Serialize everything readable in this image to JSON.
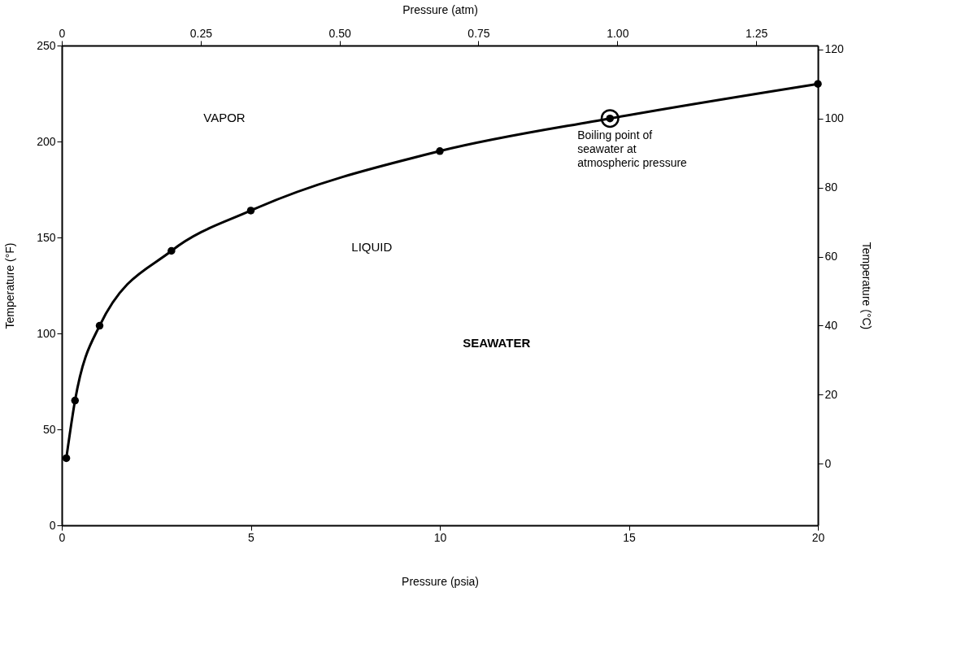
{
  "chart_data": {
    "type": "line",
    "xlabel": "Pressure (psia)",
    "x2label": "Pressure (atm)",
    "ylabel": "Temperature (°F)",
    "y2label": "Temperature (°C)",
    "xlim": [
      0,
      20
    ],
    "xticks": [
      0,
      5,
      10,
      15,
      20
    ],
    "x2lim": [
      0,
      1.361
    ],
    "x2ticks": [
      0,
      0.25,
      {
        "value": 0.5,
        "label": "0.50"
      },
      0.75,
      {
        "value": 1.0,
        "label": "1.00"
      },
      1.25
    ],
    "ylim": [
      0,
      250
    ],
    "yticks": [
      0,
      50,
      100,
      150,
      200,
      250
    ],
    "y2lim": [
      -17.8,
      121.1
    ],
    "y2ticks": [
      0,
      20,
      40,
      60,
      80,
      100,
      120
    ],
    "grid": false,
    "marker": "circle",
    "line_style": "solid",
    "series": [
      {
        "color": "#000000",
        "x": [
          0.12,
          0.35,
          1.0,
          2.9,
          5.0,
          10.0,
          14.5,
          20.0
        ],
        "values": [
          35,
          65,
          104,
          143,
          164,
          195,
          212,
          230
        ]
      },
      {
        "type": "scatter",
        "color": "#000000",
        "marker": "circle",
        "x": [
          14.5
        ],
        "values": [
          212
        ]
      }
    ],
    "annotations": [
      "VAPOR",
      "LIQUID",
      "SEAWATER",
      {
        "text": "Boiling point of\nseawater at\natmospheric pressure",
        "x": 14.5,
        "y": 212
      }
    ]
  }
}
